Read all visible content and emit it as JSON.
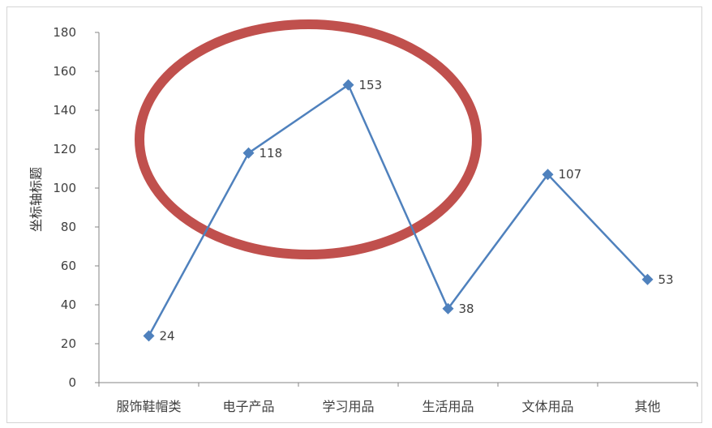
{
  "chart_data": {
    "type": "line",
    "title": "",
    "xlabel": "",
    "ylabel": "坐标轴标题",
    "categories": [
      "服饰鞋帽类",
      "电子产品",
      "学习用品",
      "生活用品",
      "文体用品",
      "其他"
    ],
    "series": [
      {
        "values": [
          24,
          118,
          153,
          38,
          107,
          53
        ]
      }
    ],
    "data_labels": [
      "24",
      "118",
      "153",
      "38",
      "107",
      "53"
    ],
    "ylim": [
      0,
      180
    ],
    "yticks": [
      "0",
      "20",
      "40",
      "60",
      "80",
      "100",
      "120",
      "140",
      "160",
      "180"
    ],
    "grid": false,
    "legend": "none",
    "annotations": [
      {
        "shape": "ellipse",
        "color": "#C0504D",
        "encloses": [
          "电子产品",
          "学习用品"
        ]
      }
    ],
    "colors": {
      "line": "#4F81BD",
      "marker": "#4F81BD",
      "annotation": "#C0504D"
    }
  }
}
